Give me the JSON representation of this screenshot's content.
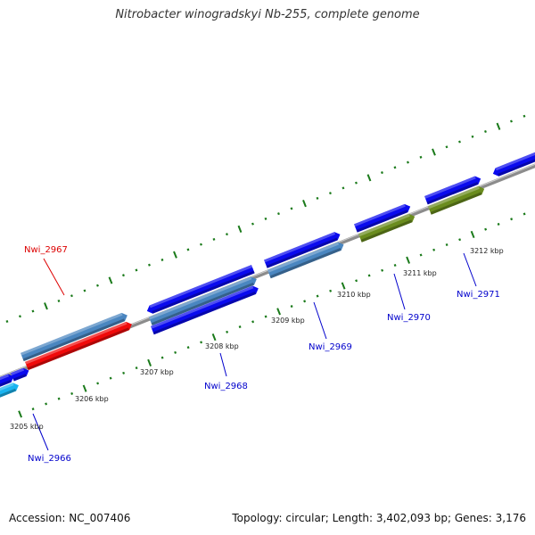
{
  "title": "Nitrobacter winogradskyi Nb-255, complete genome",
  "footer": {
    "accession": "Accession: NC_007406",
    "summary": "Topology: circular; Length: 3,402,093 bp; Genes: 3,176"
  },
  "colors": {
    "backbone": "#8c8c8c",
    "tick": "#1a7a1a",
    "cds_blue": "#0a0aee",
    "cds_steel": "#4a86c0",
    "cds_red": "#f00a0a",
    "cds_olive": "#6a8c1e",
    "cds_cyan": "#1ab4f0",
    "label_blue": "#0000cc",
    "label_red": "#dd0000"
  },
  "scale": {
    "unit": "kbp",
    "labels": [
      "3205 kbp",
      "3206 kbp",
      "3207 kbp",
      "3208 kbp",
      "3209 kbp",
      "3210 kbp",
      "3211 kbp",
      "3212 kbp"
    ]
  },
  "genes": [
    {
      "id": "Nwi_2966",
      "color": "label_blue"
    },
    {
      "id": "Nwi_2967",
      "color": "label_red"
    },
    {
      "id": "Nwi_2968",
      "color": "label_blue"
    },
    {
      "id": "Nwi_2969",
      "color": "label_blue"
    },
    {
      "id": "Nwi_2970",
      "color": "label_blue"
    },
    {
      "id": "Nwi_2971",
      "color": "label_blue"
    }
  ]
}
